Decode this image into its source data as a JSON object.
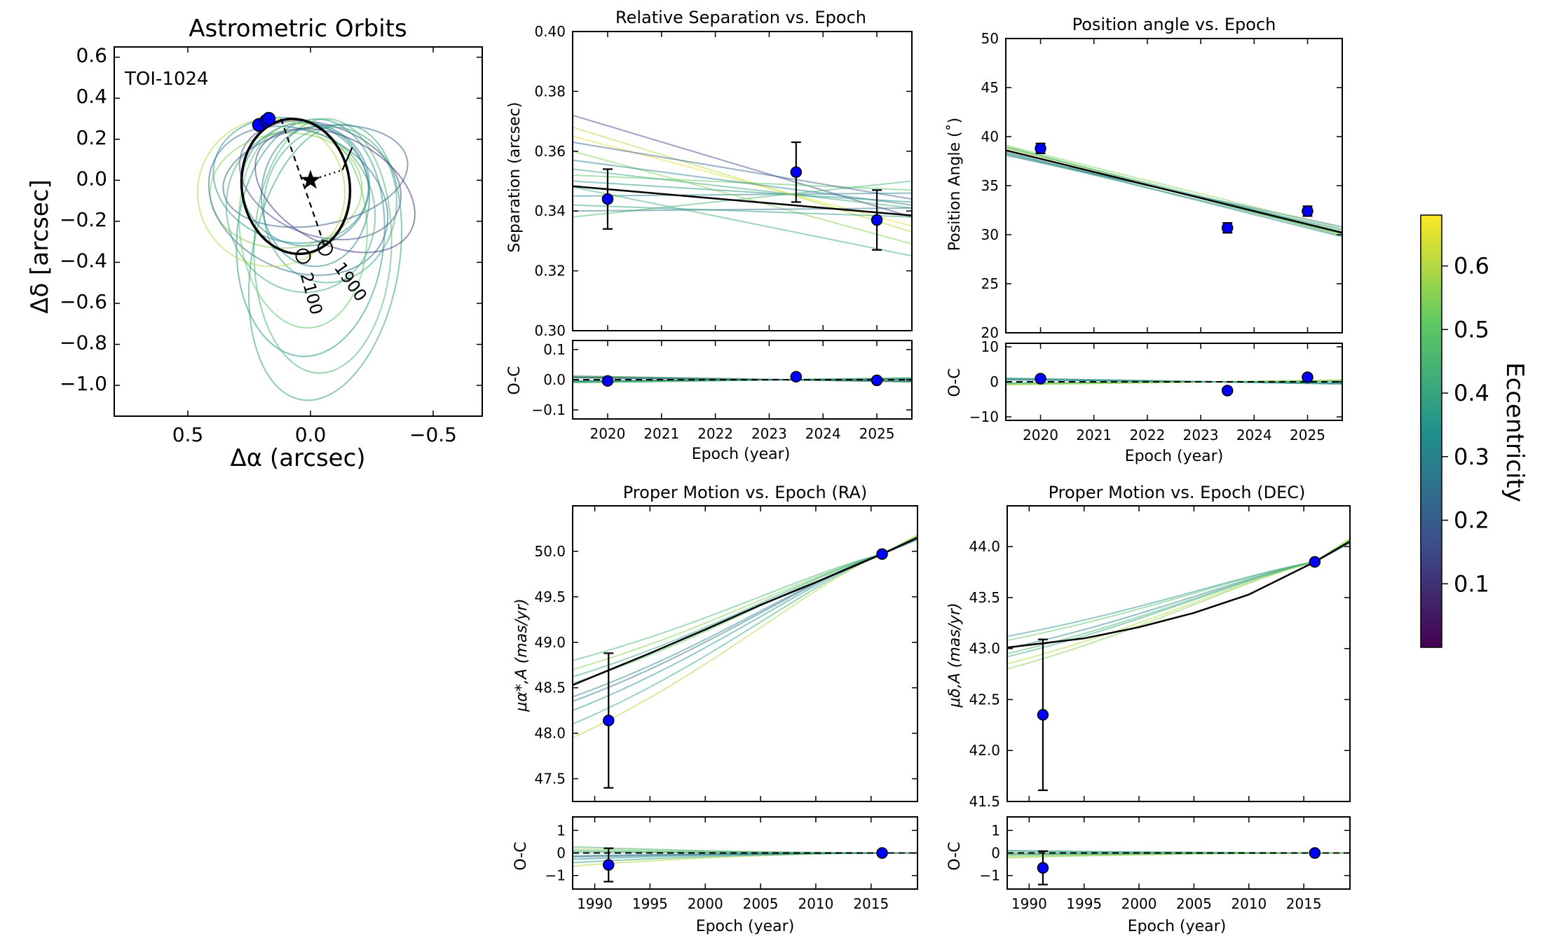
{
  "colors": {
    "model": "#000000",
    "data_point": "#0000ff",
    "colormap": [
      "#440154",
      "#3b528b",
      "#21918c",
      "#5ec962",
      "#fde725"
    ]
  },
  "chart_data": [
    {
      "id": "orbits",
      "type": "scatter",
      "title": "Astrometric Orbits",
      "target_label": "TOI-1024",
      "xlabel": "Δα (arcsec)",
      "ylabel": "Δδ [arcsec]",
      "xlim": [
        0.8,
        -0.7
      ],
      "ylim": [
        -1.15,
        0.65
      ],
      "xticks": [
        0.5,
        0.0,
        -0.5
      ],
      "xtick_labels": [
        "0.5",
        "0.0",
        "−0.5"
      ],
      "yticks": [
        0.6,
        0.4,
        0.2,
        0.0,
        -0.2,
        -0.4,
        -0.6,
        -0.8,
        -1.0
      ],
      "ytick_labels": [
        "0.6",
        "0.4",
        "0.2",
        "0.0",
        "−0.2",
        "−0.4",
        "−0.6",
        "−0.8",
        "−1.0"
      ],
      "observed": [
        {
          "x": 0.21,
          "y": 0.27
        },
        {
          "x": 0.18,
          "y": 0.29
        },
        {
          "x": 0.17,
          "y": 0.3
        }
      ],
      "best_orbit": {
        "cx": 0.06,
        "cy": -0.03,
        "a": 0.22,
        "b": 0.33,
        "rot": -8
      },
      "epoch_markers": [
        {
          "label": "1900",
          "x": -0.06,
          "y": -0.33
        },
        {
          "label": "2100",
          "x": 0.03,
          "y": -0.37
        }
      ],
      "sample_orbits": [
        {
          "cx": 0.02,
          "cy": -0.02,
          "a": 0.26,
          "b": 0.3,
          "rot": 10,
          "e": 0.3
        },
        {
          "cx": -0.04,
          "cy": 0.0,
          "a": 0.34,
          "b": 0.27,
          "rot": 20,
          "e": 0.15
        },
        {
          "cx": 0.1,
          "cy": -0.05,
          "a": 0.31,
          "b": 0.28,
          "rot": -5,
          "e": 0.55
        },
        {
          "cx": -0.08,
          "cy": -0.12,
          "a": 0.27,
          "b": 0.38,
          "rot": 8,
          "e": 0.4
        },
        {
          "cx": 0.0,
          "cy": -0.28,
          "a": 0.3,
          "b": 0.58,
          "rot": 5,
          "e": 0.35
        },
        {
          "cx": -0.05,
          "cy": -0.32,
          "a": 0.28,
          "b": 0.62,
          "rot": 2,
          "e": 0.45
        },
        {
          "cx": 0.05,
          "cy": -0.1,
          "a": 0.38,
          "b": 0.34,
          "rot": 25,
          "e": 0.25
        },
        {
          "cx": -0.02,
          "cy": 0.02,
          "a": 0.38,
          "b": 0.24,
          "rot": -10,
          "e": 0.2
        },
        {
          "cx": 0.08,
          "cy": 0.0,
          "a": 0.32,
          "b": 0.3,
          "rot": 15,
          "e": 0.35
        },
        {
          "cx": 0.03,
          "cy": -0.22,
          "a": 0.26,
          "b": 0.5,
          "rot": -4,
          "e": 0.5
        },
        {
          "cx": 0.16,
          "cy": -0.06,
          "a": 0.3,
          "b": 0.36,
          "rot": 0,
          "e": 0.6
        },
        {
          "cx": -0.06,
          "cy": -0.4,
          "a": 0.3,
          "b": 0.68,
          "rot": 10,
          "e": 0.38
        },
        {
          "cx": -0.1,
          "cy": -0.05,
          "a": 0.35,
          "b": 0.26,
          "rot": 28,
          "e": 0.12
        },
        {
          "cx": 0.04,
          "cy": -0.15,
          "a": 0.3,
          "b": 0.4,
          "rot": -18,
          "e": 0.42
        },
        {
          "cx": -0.02,
          "cy": -0.08,
          "a": 0.22,
          "b": 0.34,
          "rot": 0,
          "e": 0.3
        }
      ]
    },
    {
      "id": "sep",
      "type": "line",
      "title": "Relative Separation vs. Epoch",
      "xlabel": "Epoch (year)",
      "ylabel": "Separation (arcsec)",
      "xlim": [
        2019.35,
        2025.65
      ],
      "ylim": [
        0.3,
        0.4
      ],
      "xticks": [
        2020,
        2021,
        2022,
        2023,
        2024,
        2025
      ],
      "xtick_labels": [
        "2020",
        "2021",
        "2022",
        "2023",
        "2024",
        "2025"
      ],
      "yticks": [
        0.3,
        0.32,
        0.34,
        0.36,
        0.38,
        0.4
      ],
      "ytick_labels": [
        "0.30",
        "0.32",
        "0.34",
        "0.36",
        "0.38",
        "0.40"
      ],
      "data": [
        {
          "x": 2020.0,
          "y": 0.344,
          "err": 0.01
        },
        {
          "x": 2023.5,
          "y": 0.353,
          "err": 0.01
        },
        {
          "x": 2025.0,
          "y": 0.337,
          "err": 0.01
        }
      ],
      "best_fit": [
        {
          "x": 2019.35,
          "y": 0.3483
        },
        {
          "x": 2025.65,
          "y": 0.3385
        }
      ],
      "samples": [
        {
          "y0": 0.368,
          "y1": 0.333,
          "e": 0.6
        },
        {
          "y0": 0.372,
          "y1": 0.338,
          "e": 0.15
        },
        {
          "y0": 0.354,
          "y1": 0.341,
          "e": 0.4
        },
        {
          "y0": 0.35,
          "y1": 0.343,
          "e": 0.35
        },
        {
          "y0": 0.345,
          "y1": 0.346,
          "e": 0.3
        },
        {
          "y0": 0.338,
          "y1": 0.35,
          "e": 0.45
        },
        {
          "y0": 0.36,
          "y1": 0.329,
          "e": 0.55
        },
        {
          "y0": 0.365,
          "y1": 0.335,
          "e": 0.65
        },
        {
          "y0": 0.34,
          "y1": 0.341,
          "e": 0.25
        },
        {
          "y0": 0.352,
          "y1": 0.347,
          "e": 0.5
        },
        {
          "y0": 0.348,
          "y1": 0.325,
          "e": 0.42
        },
        {
          "y0": 0.357,
          "y1": 0.342,
          "e": 0.3
        },
        {
          "y0": 0.342,
          "y1": 0.338,
          "e": 0.38
        },
        {
          "y0": 0.363,
          "y1": 0.344,
          "e": 0.2
        }
      ],
      "residual": {
        "ylabel": "O-C",
        "ylim": [
          -0.13,
          0.13
        ],
        "yticks": [
          0.1,
          0.0,
          -0.1
        ],
        "ytick_labels": [
          "0.1",
          "0.0",
          "−0.1"
        ],
        "data": [
          {
            "x": 2020.0,
            "y": -0.004
          },
          {
            "x": 2023.5,
            "y": 0.01
          },
          {
            "x": 2025.0,
            "y": -0.002
          }
        ]
      }
    },
    {
      "id": "pa",
      "type": "line",
      "title": "Position angle vs. Epoch",
      "xlabel": "Epoch (year)",
      "ylabel": "Position Angle (˚)",
      "xlim": [
        2019.35,
        2025.65
      ],
      "ylim": [
        20,
        50
      ],
      "xticks": [
        2020,
        2021,
        2022,
        2023,
        2024,
        2025
      ],
      "xtick_labels": [
        "2020",
        "2021",
        "2022",
        "2023",
        "2024",
        "2025"
      ],
      "yticks": [
        20,
        25,
        30,
        35,
        40,
        45,
        50
      ],
      "ytick_labels": [
        "20",
        "25",
        "30",
        "35",
        "40",
        "45",
        "50"
      ],
      "data": [
        {
          "x": 2020.0,
          "y": 38.8,
          "err": 0.5
        },
        {
          "x": 2023.5,
          "y": 30.7,
          "err": 0.5
        },
        {
          "x": 2025.0,
          "y": 32.4,
          "err": 0.5
        }
      ],
      "best_fit": [
        {
          "x": 2019.35,
          "y": 38.6
        },
        {
          "x": 2025.65,
          "y": 30.2
        }
      ],
      "samples": [
        {
          "y0": 39.0,
          "y1": 29.9,
          "e": 0.5
        },
        {
          "y0": 38.3,
          "y1": 30.5,
          "e": 0.35
        },
        {
          "y0": 38.8,
          "y1": 30.0,
          "e": 0.6
        },
        {
          "y0": 38.1,
          "y1": 30.8,
          "e": 0.25
        },
        {
          "y0": 38.9,
          "y1": 30.3,
          "e": 0.42
        },
        {
          "y0": 38.4,
          "y1": 29.8,
          "e": 0.3
        },
        {
          "y0": 39.1,
          "y1": 30.6,
          "e": 0.55
        },
        {
          "y0": 38.2,
          "y1": 30.1,
          "e": 0.4
        }
      ],
      "residual": {
        "ylabel": "O-C",
        "ylim": [
          -11,
          11
        ],
        "yticks": [
          10,
          0,
          -10
        ],
        "ytick_labels": [
          "10",
          "0",
          "−10"
        ],
        "data": [
          {
            "x": 2020.0,
            "y": 0.9
          },
          {
            "x": 2023.5,
            "y": -2.5
          },
          {
            "x": 2025.0,
            "y": 1.3
          }
        ]
      }
    },
    {
      "id": "pmra",
      "type": "line",
      "title": "Proper Motion vs. Epoch (RA)",
      "xlabel": "Epoch (year)",
      "ylabel": "μα*,A (mas/yr)",
      "xlim": [
        1988,
        2019.2
      ],
      "ylim": [
        47.25,
        50.5
      ],
      "xticks": [
        1990,
        1995,
        2000,
        2005,
        2010,
        2015
      ],
      "xtick_labels": [
        "1990",
        "1995",
        "2000",
        "2005",
        "2010",
        "2015"
      ],
      "yticks": [
        47.5,
        48.0,
        48.5,
        49.0,
        49.5,
        50.0
      ],
      "ytick_labels": [
        "47.5",
        "48.0",
        "48.5",
        "49.0",
        "49.5",
        "50.0"
      ],
      "data": [
        {
          "x": 1991.25,
          "y": 48.14,
          "err": 0.74
        },
        {
          "x": 2016.0,
          "y": 49.97,
          "err": 0.02
        }
      ],
      "best_fit": [
        {
          "x": 1988,
          "y": 48.53
        },
        {
          "x": 1995,
          "y": 48.88
        },
        {
          "x": 2000,
          "y": 49.14
        },
        {
          "x": 2005,
          "y": 49.41
        },
        {
          "x": 2010,
          "y": 49.66
        },
        {
          "x": 2016,
          "y": 49.97
        },
        {
          "x": 2019.2,
          "y": 50.15
        }
      ],
      "samples": [
        {
          "y0": 47.95,
          "e": 0.6
        },
        {
          "y0": 48.1,
          "e": 0.4
        },
        {
          "y0": 48.25,
          "e": 0.35
        },
        {
          "y0": 48.4,
          "e": 0.3
        },
        {
          "y0": 48.55,
          "e": 0.5
        },
        {
          "y0": 48.7,
          "e": 0.55
        },
        {
          "y0": 48.8,
          "e": 0.45
        },
        {
          "y0": 48.35,
          "e": 0.25
        },
        {
          "y0": 48.62,
          "e": 0.38
        }
      ],
      "residual": {
        "ylabel": "O-C",
        "ylim": [
          -1.6,
          1.6
        ],
        "yticks": [
          1,
          0,
          -1
        ],
        "ytick_labels": [
          "1",
          "0",
          "−1"
        ],
        "data": [
          {
            "x": 1991.25,
            "y": -0.53,
            "err": 0.74
          },
          {
            "x": 2016.0,
            "y": 0.0
          }
        ]
      }
    },
    {
      "id": "pmdec",
      "type": "line",
      "title": "Proper Motion vs. Epoch (DEC)",
      "xlabel": "Epoch (year)",
      "ylabel": "μδ,A (mas/yr)",
      "xlim": [
        1988,
        2019.2
      ],
      "ylim": [
        41.5,
        44.4
      ],
      "xticks": [
        1990,
        1995,
        2000,
        2005,
        2010,
        2015
      ],
      "xtick_labels": [
        "1990",
        "1995",
        "2000",
        "2005",
        "2010",
        "2015"
      ],
      "yticks": [
        41.5,
        42.0,
        42.5,
        43.0,
        43.5,
        44.0
      ],
      "ytick_labels": [
        "41.5",
        "42.0",
        "42.5",
        "43.0",
        "43.5",
        "44.0"
      ],
      "data": [
        {
          "x": 1991.25,
          "y": 42.35,
          "err": 0.74
        },
        {
          "x": 2016.0,
          "y": 43.85,
          "err": 0.02
        }
      ],
      "best_fit": [
        {
          "x": 1988,
          "y": 43.01
        },
        {
          "x": 1995,
          "y": 43.1
        },
        {
          "x": 2000,
          "y": 43.21
        },
        {
          "x": 2005,
          "y": 43.35
        },
        {
          "x": 2010,
          "y": 43.53
        },
        {
          "x": 2016,
          "y": 43.85
        },
        {
          "x": 2019.2,
          "y": 44.05
        }
      ],
      "samples": [
        {
          "y0": 42.85,
          "e": 0.6
        },
        {
          "y0": 42.92,
          "e": 0.4
        },
        {
          "y0": 43.0,
          "e": 0.3
        },
        {
          "y0": 43.08,
          "e": 0.5
        },
        {
          "y0": 43.12,
          "e": 0.35
        },
        {
          "y0": 42.95,
          "e": 0.45
        },
        {
          "y0": 42.8,
          "e": 0.55
        }
      ],
      "residual": {
        "ylabel": "O-C",
        "ylim": [
          -1.6,
          1.6
        ],
        "yticks": [
          1,
          0,
          -1
        ],
        "ytick_labels": [
          "1",
          "0",
          "−1"
        ],
        "data": [
          {
            "x": 1991.25,
            "y": -0.66,
            "err": 0.74
          },
          {
            "x": 2016.0,
            "y": 0.0
          }
        ]
      }
    }
  ],
  "colorbar": {
    "label": "Eccentricity",
    "range": [
      0.0,
      0.68
    ],
    "ticks": [
      0.1,
      0.2,
      0.3,
      0.4,
      0.5,
      0.6
    ],
    "tick_labels": [
      "0.1",
      "0.2",
      "0.3",
      "0.4",
      "0.5",
      "0.6"
    ]
  }
}
